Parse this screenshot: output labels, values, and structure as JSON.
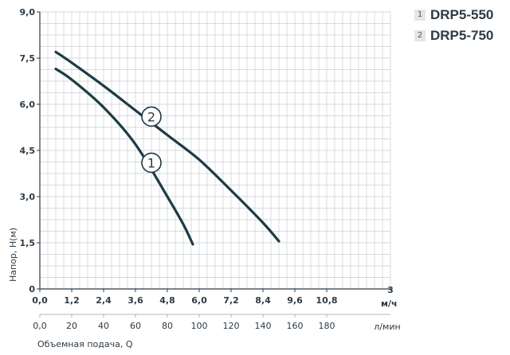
{
  "chart_data": {
    "type": "line",
    "ylabel": "Напор, H(м)",
    "xlabel": "Объемная подача, Q",
    "x_unit_top": "м",
    "x_unit_top_sup": "3",
    "x_unit_top_suffix": "/ч",
    "x_unit_bottom": "л/мин",
    "xlim": [
      0,
      13.2
    ],
    "ylim": [
      0,
      9.0
    ],
    "y_ticks": [
      "0",
      "1,5",
      "3,0",
      "4,5",
      "6,0",
      "7,5",
      "9,0"
    ],
    "y_tick_values": [
      0,
      1.5,
      3.0,
      4.5,
      6.0,
      7.5,
      9.0
    ],
    "x_ticks_top": [
      "0,0",
      "1,2",
      "2,4",
      "3,6",
      "4,8",
      "6,0",
      "7,2",
      "8,4",
      "9,6",
      "10,8"
    ],
    "x_ticks_top_values": [
      0,
      1.2,
      2.4,
      3.6,
      4.8,
      6.0,
      7.2,
      8.4,
      9.6,
      10.8
    ],
    "x_ticks_bottom": [
      "0,0",
      "20",
      "40",
      "60",
      "80",
      "100",
      "120",
      "140",
      "160",
      "180"
    ],
    "x_ticks_bottom_values": [
      0,
      1.2,
      2.4,
      3.6,
      4.8,
      6.0,
      7.2,
      8.4,
      9.6,
      10.8
    ],
    "grid": true,
    "legend_position": "top-right",
    "series": [
      {
        "name": "DRP5-550",
        "marker_label": "1",
        "marker_at": [
          4.2,
          4.1
        ],
        "x": [
          0.6,
          1.2,
          2.4,
          3.6,
          4.8,
          5.4,
          5.76
        ],
        "y": [
          7.15,
          6.8,
          5.9,
          4.7,
          3.0,
          2.1,
          1.45
        ]
      },
      {
        "name": "DRP5-750",
        "marker_label": "2",
        "marker_at": [
          4.2,
          5.6
        ],
        "x": [
          0.6,
          1.2,
          2.4,
          3.6,
          4.8,
          6.0,
          7.2,
          8.4,
          9.0
        ],
        "y": [
          7.7,
          7.35,
          6.6,
          5.8,
          5.0,
          4.2,
          3.2,
          2.15,
          1.55
        ]
      }
    ],
    "colors": {
      "line": "#1f3a44",
      "grid": "#c9ced2",
      "axis": "#2e3a44"
    }
  }
}
